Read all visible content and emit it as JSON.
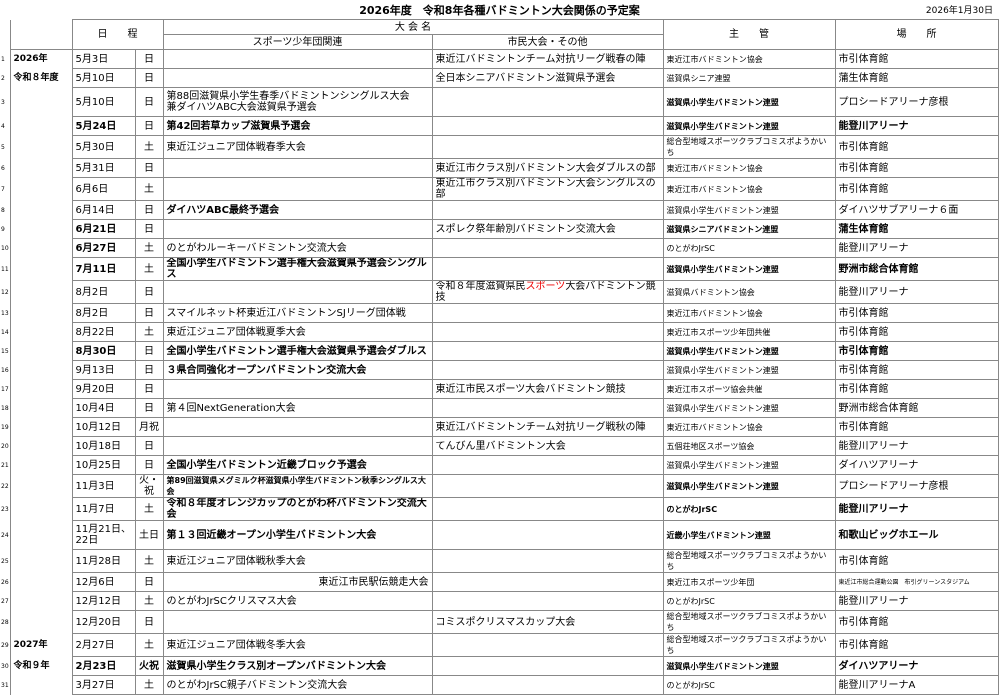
{
  "header": {
    "title": "2026年度　令和8年各種バドミントン大会関係の予定案",
    "date": "2026年1月30日"
  },
  "table": {
    "col_schedule": "日　　程",
    "col_event": "大 会 名",
    "col_sports": "スポーツ少年団関連",
    "col_civic": "市民大会・その他",
    "col_organizer": "主　　管",
    "col_venue": "場　　所",
    "rows": [
      {
        "no": 1,
        "year": "2026年",
        "date": "5月3日",
        "day": "日",
        "civic": "東近江バドミントンチーム対抗リーグ戦春の陣",
        "organizer": "東近江市バドミントン協会",
        "venue": "市引体育館"
      },
      {
        "no": 2,
        "year": "令和８年度",
        "date": "5月10日",
        "day": "日",
        "civic": "全日本シニアバドミントン滋賀県予選会",
        "organizer": "滋賀県シニア連盟",
        "venue": "蒲生体育館"
      },
      {
        "no": 3,
        "date": "5月10日",
        "day": "日",
        "sports": "第88回滋賀県小学生春季バドミントンシングルス大会\n兼ダイハツABC大会滋賀県予選会",
        "organizer": "滋賀県小学生バドミントン連盟",
        "venue": "プロシードアリーナ彦根"
      },
      {
        "no": 4,
        "date": "5月24日",
        "day": "日",
        "sports": "第42回若草カップ滋賀県予選会",
        "organizer": "滋賀県小学生バドミントン連盟",
        "venue": "能登川アリーナ"
      },
      {
        "no": 5,
        "date": "5月30日",
        "day": "土",
        "sports": "東近江ジュニア団体戦春季大会",
        "organizer": "総合型地域スポーツクラブコミスポようかいち",
        "venue": "市引体育館"
      },
      {
        "no": 6,
        "date": "5月31日",
        "day": "日",
        "civic": "東近江市クラス別バドミントン大会ダブルスの部",
        "organizer": "東近江市バドミントン協会",
        "venue": "市引体育館"
      },
      {
        "no": 7,
        "date": "6月6日",
        "day": "土",
        "civic": "東近江市クラス別バドミントン大会シングルスの部",
        "organizer": "東近江市バドミントン協会",
        "venue": "市引体育館"
      },
      {
        "no": 8,
        "date": "6月14日",
        "day": "日",
        "sports": "ダイハツABC最終予選会",
        "organizer": "滋賀県小学生バドミントン連盟",
        "venue": "ダイハツサブアリーナ６面"
      },
      {
        "no": 9,
        "date": "6月21日",
        "day": "日",
        "civic": "スポレク祭年齢別バドミントン交流大会",
        "organizer": "滋賀県シニアバドミントン連盟",
        "venue": "蒲生体育館"
      },
      {
        "no": 10,
        "date": "6月27日",
        "day": "土",
        "sports": "のとがわルーキーバドミントン交流大会",
        "organizer": "のとがわJrSC",
        "venue": "能登川アリーナ"
      },
      {
        "no": 11,
        "date": "7月11日",
        "day": "土",
        "sports": "全国小学生バドミントン選手権大会滋賀県予選会シングルス",
        "organizer": "滋賀県小学生バドミントン連盟",
        "venue": "野洲市総合体育館"
      },
      {
        "no": 12,
        "date": "8月2日",
        "day": "日",
        "civic": [
          "令和８年度滋賀県民",
          "スポーツ",
          "大会バドミントン競技"
        ],
        "organizer": "滋賀県バドミントン協会",
        "venue": "能登川アリーナ"
      },
      {
        "no": 13,
        "date": "8月2日",
        "day": "日",
        "sports": "スマイルネット杯東近江バドミントンSJリーグ団体戦",
        "organizer": "東近江市バドミントン協会",
        "venue": "市引体育館"
      },
      {
        "no": 14,
        "date": "8月22日",
        "day": "土",
        "sports": "東近江ジュニア団体戦夏季大会",
        "organizer": "東近江市スポーツ少年団共催",
        "venue": "市引体育館"
      },
      {
        "no": 15,
        "date": "8月30日",
        "day": "日",
        "sports": "全国小学生バドミントン選手権大会滋賀県予選会ダブルス",
        "organizer": "滋賀県小学生バドミントン連盟",
        "venue": "市引体育館"
      },
      {
        "no": 16,
        "date": "9月13日",
        "day": "日",
        "sports": "３県合同強化オープンバドミントン交流大会",
        "organizer": "滋賀県小学生バドミントン連盟",
        "venue": "市引体育館"
      },
      {
        "no": 17,
        "date": "9月20日",
        "day": "日",
        "civic": "東近江市民スポーツ大会バドミントン競技",
        "organizer": "東近江市スポーツ協会共催",
        "venue": "市引体育館"
      },
      {
        "no": 18,
        "date": "10月4日",
        "day": "日",
        "sports": "第４回NextGeneration大会",
        "organizer": "滋賀県小学生バドミントン連盟",
        "venue": "野洲市総合体育館"
      },
      {
        "no": 19,
        "date": "10月12日",
        "day": "月祝",
        "civic": "東近江バドミントンチーム対抗リーグ戦秋の陣",
        "organizer": "東近江市バドミントン協会",
        "venue": "市引体育館"
      },
      {
        "no": 20,
        "date": "10月18日",
        "day": "日",
        "civic": "てんびん里バドミントン大会",
        "organizer": "五個荘地区スポーツ協会",
        "venue": "能登川アリーナ"
      },
      {
        "no": 21,
        "date": "10月25日",
        "day": "日",
        "sports": "全国小学生バドミントン近畿ブロック予選会",
        "organizer": "滋賀県小学生バドミントン連盟",
        "venue": "ダイハツアリーナ"
      },
      {
        "no": 22,
        "date": "11月3日",
        "day": "火・祝",
        "sports": "第89回滋賀県メグミルク杯滋賀県小学生バドミントン秋季シングルス大会",
        "organizer": "滋賀県小学生バドミントン連盟",
        "venue": "プロシードアリーナ彦根"
      },
      {
        "no": 23,
        "date": "11月7日",
        "day": "土",
        "sports": "令和８年度オレンジカップのとがわ杯バドミントン交流大会",
        "organizer": "のとがわJrSC",
        "venue": "能登川アリーナ"
      },
      {
        "no": 24,
        "date": "11月21日、\n22日",
        "day": "土日",
        "sports": "第１３回近畿オープン小学生バドミントン大会",
        "organizer": "近畿小学生バドミントン連盟",
        "venue": "和歌山ビッグホエール"
      },
      {
        "no": 25,
        "date": "11月28日",
        "day": "土",
        "sports": "東近江ジュニア団体戦秋季大会",
        "organizer": "総合型地域スポーツクラブコミスポようかいち",
        "venue": "市引体育館"
      },
      {
        "no": 26,
        "date": "12月6日",
        "day": "日",
        "sports": "東近江市民駅伝競走大会",
        "organizer": "東近江市スポーツ少年団",
        "venue": "東近江市総合運動公園　布引グリーンスタジアム"
      },
      {
        "no": 27,
        "date": "12月12日",
        "day": "土",
        "sports": "のとがわJrSCクリスマス大会",
        "organizer": "のとがわJrSC",
        "venue": "能登川アリーナ"
      },
      {
        "no": 28,
        "date": "12月20日",
        "day": "日",
        "civic": "コミスポクリスマスカップ大会",
        "organizer": "総合型地域スポーツクラブコミスポようかいち",
        "venue": "市引体育館"
      },
      {
        "no": 29,
        "year": "2027年",
        "date": "2月27日",
        "day": "土",
        "sports": "東近江ジュニア団体戦冬季大会",
        "organizer": "総合型地域スポーツクラブコミスポようかいち",
        "venue": "市引体育館"
      },
      {
        "no": 30,
        "year": "令和９年",
        "date": "2月23日",
        "day": "火祝",
        "sports": "滋賀県小学生クラス別オープンバドミントン大会",
        "organizer": "滋賀県小学生バドミントン連盟",
        "venue": "ダイハツアリーナ"
      },
      {
        "no": 31,
        "date": "3月27日",
        "day": "土",
        "sports": "のとがわJrSC親子バドミントン交流大会",
        "organizer": "のとがわJrSC",
        "venue": "能登川アリーナA"
      }
    ]
  }
}
